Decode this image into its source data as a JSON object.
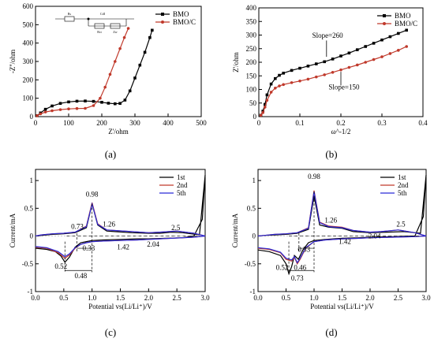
{
  "figure": {
    "panel_labels": [
      "(a)",
      "(b)",
      "(c)",
      "(d)"
    ]
  },
  "colors": {
    "series_a": "#000000",
    "series_b": "#c0392b",
    "series_c": "#2b2bd6"
  },
  "chart_data": [
    {
      "id": "a",
      "type": "line",
      "xlabel": "Z'/ohm",
      "ylabel": "-Z''/ohm",
      "xlim": [
        0,
        500
      ],
      "ylim": [
        0,
        600
      ],
      "xticks": [
        0,
        100,
        200,
        300,
        400,
        500
      ],
      "yticks": [
        0,
        100,
        200,
        300,
        400,
        500,
        600
      ],
      "legend_position": "top-right",
      "inset": "equivalent circuit: Rs, CdI, Rct, Zw",
      "series": [
        {
          "name": "BMO",
          "marker": "square",
          "x": [
            5,
            15,
            30,
            50,
            75,
            100,
            125,
            150,
            175,
            200,
            220,
            240,
            255,
            270,
            285,
            300,
            315,
            330,
            345,
            352
          ],
          "y": [
            5,
            20,
            40,
            58,
            72,
            80,
            84,
            85,
            83,
            78,
            73,
            70,
            72,
            90,
            140,
            210,
            280,
            350,
            430,
            470
          ]
        },
        {
          "name": "BMO/C",
          "marker": "circle",
          "x": [
            5,
            15,
            30,
            50,
            75,
            100,
            125,
            150,
            175,
            195,
            210,
            225,
            240,
            255,
            268,
            280
          ],
          "y": [
            5,
            15,
            25,
            32,
            38,
            42,
            44,
            45,
            60,
            100,
            160,
            230,
            300,
            370,
            430,
            480
          ]
        }
      ]
    },
    {
      "id": "b",
      "type": "line",
      "xlabel": "ω^-1/2",
      "ylabel": "Z'/ohm",
      "xlim": [
        0.0,
        0.4
      ],
      "ylim": [
        0,
        400
      ],
      "xticks": [
        0.0,
        0.1,
        0.2,
        0.3,
        0.4
      ],
      "yticks": [
        0,
        50,
        100,
        150,
        200,
        250,
        300,
        350,
        400
      ],
      "legend_position": "top-right",
      "annotations": [
        "Slope=260",
        "Slope=150"
      ],
      "series": [
        {
          "name": "BMO",
          "marker": "square",
          "x": [
            0.005,
            0.01,
            0.015,
            0.02,
            0.03,
            0.04,
            0.05,
            0.06,
            0.08,
            0.1,
            0.12,
            0.14,
            0.16,
            0.18,
            0.2,
            0.22,
            0.24,
            0.26,
            0.28,
            0.3,
            0.32,
            0.34,
            0.36
          ],
          "y": [
            5,
            20,
            45,
            80,
            120,
            140,
            152,
            160,
            170,
            178,
            186,
            194,
            202,
            212,
            223,
            234,
            246,
            258,
            270,
            282,
            294,
            306,
            318
          ]
        },
        {
          "name": "BMO/C",
          "marker": "circle",
          "x": [
            0.005,
            0.01,
            0.015,
            0.02,
            0.03,
            0.04,
            0.05,
            0.06,
            0.08,
            0.1,
            0.12,
            0.14,
            0.16,
            0.18,
            0.2,
            0.22,
            0.24,
            0.26,
            0.28,
            0.3,
            0.32,
            0.34,
            0.36
          ],
          "y": [
            5,
            15,
            35,
            60,
            90,
            105,
            113,
            118,
            125,
            131,
            138,
            146,
            154,
            163,
            172,
            181,
            190,
            200,
            210,
            220,
            232,
            244,
            258
          ]
        }
      ]
    },
    {
      "id": "c",
      "type": "line",
      "xlabel": "Potential vs(Li/Li⁺)/V",
      "ylabel": "Current/mA",
      "xlim": [
        0.0,
        3.0
      ],
      "ylim": [
        -1.0,
        1.2
      ],
      "xticks": [
        0.0,
        0.5,
        1.0,
        1.5,
        2.0,
        2.5,
        3.0
      ],
      "xtick_labels": [
        "0.0",
        "0.5",
        "1.0",
        "1.5",
        "2.0",
        "2.5",
        "3.0"
      ],
      "yticks": [
        -1.0,
        -0.5,
        0.0,
        0.5,
        1.0
      ],
      "legend_position": "top-right",
      "annotations": [
        {
          "text": "0.98",
          "x": 1.0,
          "y": 0.71
        },
        {
          "text": "1.26",
          "x": 1.3,
          "y": 0.17
        },
        {
          "text": "2.5",
          "x": 2.48,
          "y": 0.11
        },
        {
          "text": "0.73",
          "x": 0.74,
          "y": 0.13
        },
        {
          "text": "0.33",
          "x": 0.94,
          "y": -0.26
        },
        {
          "text": "1.42",
          "x": 1.55,
          "y": -0.24
        },
        {
          "text": "2.04",
          "x": 2.08,
          "y": -0.19
        },
        {
          "text": "0.52",
          "x": 0.45,
          "y": -0.59
        },
        {
          "text": "0.48",
          "x": 0.8,
          "y": -0.76
        }
      ],
      "series": [
        {
          "name": "1st",
          "x": [
            0.0,
            0.2,
            0.35,
            0.45,
            0.52,
            0.6,
            0.7,
            0.8,
            0.9,
            1.0,
            1.2,
            1.5,
            1.8,
            2.0,
            2.3,
            2.6,
            2.8,
            2.95,
            3.0,
            2.9,
            2.6,
            2.4,
            2.2,
            2.0,
            1.7,
            1.4,
            1.26,
            1.1,
            1.0,
            0.9,
            0.7,
            0.5,
            0.3,
            0.1,
            0.0
          ],
          "y": [
            -0.22,
            -0.24,
            -0.28,
            -0.36,
            -0.47,
            -0.38,
            -0.2,
            -0.12,
            -0.1,
            -0.08,
            -0.07,
            -0.06,
            -0.05,
            -0.05,
            -0.04,
            -0.03,
            0.0,
            0.3,
            1.1,
            0.02,
            0.06,
            0.07,
            0.05,
            0.05,
            0.06,
            0.08,
            0.09,
            0.2,
            0.58,
            0.15,
            0.06,
            0.04,
            0.03,
            0.01,
            0.0
          ]
        },
        {
          "name": "2nd",
          "x": [
            0.0,
            0.2,
            0.4,
            0.52,
            0.6,
            0.7,
            0.8,
            0.9,
            1.0,
            1.2,
            1.5,
            1.8,
            2.0,
            2.4,
            2.8,
            3.0,
            2.8,
            2.5,
            2.2,
            2.0,
            1.7,
            1.4,
            1.26,
            1.1,
            1.0,
            0.9,
            0.7,
            0.5,
            0.3,
            0.1,
            0.0
          ],
          "y": [
            -0.2,
            -0.22,
            -0.3,
            -0.4,
            -0.34,
            -0.22,
            -0.15,
            -0.12,
            -0.1,
            -0.09,
            -0.08,
            -0.07,
            -0.06,
            -0.04,
            -0.02,
            0.0,
            0.05,
            0.09,
            0.07,
            0.06,
            0.08,
            0.1,
            0.11,
            0.22,
            0.6,
            0.18,
            0.07,
            0.05,
            0.04,
            0.02,
            0.0
          ]
        },
        {
          "name": "5th",
          "x": [
            0.0,
            0.2,
            0.4,
            0.52,
            0.6,
            0.7,
            0.8,
            0.9,
            1.0,
            1.2,
            1.5,
            1.8,
            2.0,
            2.4,
            2.8,
            3.0,
            2.8,
            2.5,
            2.2,
            2.0,
            1.7,
            1.4,
            1.26,
            1.1,
            1.0,
            0.9,
            0.7,
            0.5,
            0.3,
            0.1,
            0.0
          ],
          "y": [
            -0.19,
            -0.21,
            -0.28,
            -0.37,
            -0.32,
            -0.21,
            -0.15,
            -0.12,
            -0.1,
            -0.09,
            -0.08,
            -0.07,
            -0.06,
            -0.04,
            -0.02,
            0.0,
            0.05,
            0.09,
            0.07,
            0.06,
            0.08,
            0.1,
            0.11,
            0.21,
            0.58,
            0.17,
            0.07,
            0.05,
            0.04,
            0.02,
            0.0
          ]
        }
      ]
    },
    {
      "id": "d",
      "type": "line",
      "xlabel": "Potential vs(Li/Li⁺)/V",
      "ylabel": "Current/mA",
      "xlim": [
        0.0,
        3.0
      ],
      "ylim": [
        -1.0,
        1.2
      ],
      "xticks": [
        0.0,
        0.5,
        1.0,
        1.5,
        2.0,
        2.5,
        3.0
      ],
      "xtick_labels": [
        "0.0",
        "0.5",
        "1.0",
        "1.5",
        "2.0",
        "2.5",
        "3.0"
      ],
      "yticks": [
        -1.0,
        -0.5,
        0.0,
        0.5,
        1.0
      ],
      "legend_position": "top-right",
      "annotations": [
        {
          "text": "0.98",
          "x": 1.0,
          "y": 1.03
        },
        {
          "text": "1.26",
          "x": 1.3,
          "y": 0.24
        },
        {
          "text": "2.5",
          "x": 2.55,
          "y": 0.17
        },
        {
          "text": "0.33",
          "x": 0.82,
          "y": -0.28
        },
        {
          "text": "1.42",
          "x": 1.55,
          "y": -0.14
        },
        {
          "text": "2.04",
          "x": 2.08,
          "y": -0.04
        },
        {
          "text": "0.52",
          "x": 0.43,
          "y": -0.61
        },
        {
          "text": "0.46",
          "x": 0.75,
          "y": -0.61
        },
        {
          "text": "0.73",
          "x": 0.7,
          "y": -0.8
        }
      ],
      "series": [
        {
          "name": "1st",
          "x": [
            0.0,
            0.2,
            0.4,
            0.5,
            0.55,
            0.6,
            0.65,
            0.72,
            0.8,
            0.9,
            1.0,
            1.2,
            1.5,
            1.8,
            2.0,
            2.4,
            2.8,
            2.95,
            3.0,
            2.9,
            2.6,
            2.3,
            2.0,
            1.7,
            1.5,
            1.26,
            1.1,
            1.0,
            0.9,
            0.7,
            0.5,
            0.3,
            0.1,
            0.0
          ],
          "y": [
            -0.25,
            -0.28,
            -0.35,
            -0.5,
            -0.68,
            -0.55,
            -0.35,
            -0.42,
            -0.25,
            -0.12,
            -0.08,
            -0.06,
            -0.04,
            -0.03,
            -0.02,
            -0.01,
            0.0,
            0.35,
            1.1,
            0.05,
            0.08,
            0.07,
            0.06,
            0.08,
            0.14,
            0.16,
            0.2,
            0.72,
            0.12,
            0.05,
            0.03,
            0.02,
            0.01,
            0.0
          ]
        },
        {
          "name": "2nd",
          "x": [
            0.0,
            0.2,
            0.4,
            0.5,
            0.6,
            0.65,
            0.7,
            0.75,
            0.85,
            1.0,
            1.2,
            1.5,
            1.8,
            2.0,
            2.4,
            2.8,
            3.0,
            2.8,
            2.5,
            2.2,
            2.0,
            1.7,
            1.5,
            1.26,
            1.1,
            1.0,
            0.9,
            0.7,
            0.5,
            0.3,
            0.1,
            0.0
          ],
          "y": [
            -0.22,
            -0.24,
            -0.3,
            -0.42,
            -0.45,
            -0.38,
            -0.5,
            -0.42,
            -0.22,
            -0.1,
            -0.07,
            -0.05,
            -0.04,
            -0.03,
            -0.02,
            -0.01,
            0.0,
            0.06,
            0.11,
            0.08,
            0.07,
            0.1,
            0.16,
            0.18,
            0.25,
            0.82,
            0.15,
            0.06,
            0.04,
            0.03,
            0.01,
            0.0
          ]
        },
        {
          "name": "5th",
          "x": [
            0.0,
            0.2,
            0.4,
            0.5,
            0.6,
            0.65,
            0.7,
            0.75,
            0.85,
            1.0,
            1.2,
            1.5,
            1.8,
            2.0,
            2.4,
            2.8,
            3.0,
            2.8,
            2.5,
            2.2,
            2.0,
            1.7,
            1.5,
            1.26,
            1.1,
            1.0,
            0.9,
            0.7,
            0.5,
            0.3,
            0.1,
            0.0
          ],
          "y": [
            -0.21,
            -0.23,
            -0.29,
            -0.4,
            -0.43,
            -0.37,
            -0.48,
            -0.4,
            -0.21,
            -0.1,
            -0.07,
            -0.05,
            -0.04,
            -0.03,
            -0.02,
            -0.01,
            0.0,
            0.06,
            0.11,
            0.08,
            0.07,
            0.1,
            0.15,
            0.17,
            0.24,
            0.8,
            0.14,
            0.06,
            0.04,
            0.03,
            0.01,
            0.0
          ]
        }
      ]
    }
  ]
}
